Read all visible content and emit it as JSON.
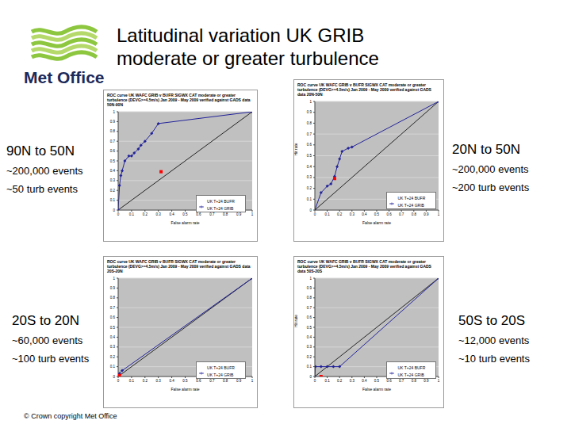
{
  "slide": {
    "title": [
      "Latitudinal variation UK GRIB",
      "moderate or greater turbulence"
    ],
    "logo": "Met Office",
    "footer": "© Crown copyright   Met Office"
  },
  "chart_data": [
    {
      "type": "line",
      "title": "ROC curve UK WAFC GRIB v BUFR SIGWX CAT moderate or greater turbulence (DEVG>=4.5m/s) Jan 2009 - May 2009 verified against GADS data 50N-90N",
      "annotations": [
        "90N to 50N",
        "~200,000 events",
        "~50 turb events"
      ],
      "x_label": "False alarm rate",
      "xlim": [
        0,
        1
      ],
      "xticks": [
        0,
        0.1,
        0.2,
        0.3,
        0.4,
        0.5,
        0.6,
        0.7,
        0.8,
        0.9,
        1
      ],
      "ylim": [
        0,
        1
      ],
      "yticks": [
        0,
        0.1,
        0.2,
        0.3,
        0.4,
        0.5,
        0.6,
        0.7,
        0.8,
        0.9,
        1
      ],
      "grid": true,
      "reference_line": {
        "x": [
          0,
          1
        ],
        "y": [
          0,
          1
        ]
      },
      "series": [
        {
          "name": "UK T+24 GRIB",
          "color": "#22229a",
          "marker": "diamond",
          "line_style": "solid",
          "x": [
            0,
            0.01,
            0.02,
            0.03,
            0.05,
            0.08,
            0.1,
            0.12,
            0.15,
            0.17,
            0.2,
            0.25,
            0.3,
            1
          ],
          "values": [
            0,
            0.25,
            0.35,
            0.4,
            0.5,
            0.55,
            0.55,
            0.58,
            0.62,
            0.66,
            0.7,
            0.78,
            0.88,
            1
          ]
        },
        {
          "name": "UK T+24 BUFR",
          "color": "#ff0000",
          "marker": "square",
          "line_style": "none",
          "x": [
            0.32
          ],
          "values": [
            0.39
          ]
        }
      ]
    },
    {
      "type": "line",
      "title": "ROC curve UK WAFC GRIB v BUFR SIGWX CAT moderate or greater turbulence (DEVG>=4.5m/s) Jan 2009 - May 2009 verified against GADS data 20N-50N",
      "annotations": [
        "20N to 50N",
        "~200,000 events",
        "~200 turb events"
      ],
      "x_label": "False alarm rate",
      "y_label": "Hit rate",
      "xlim": [
        0,
        1
      ],
      "xticks": [
        0,
        0.1,
        0.2,
        0.3,
        0.4,
        0.5,
        0.6,
        0.7,
        0.8,
        0.9,
        1
      ],
      "ylim": [
        0,
        1
      ],
      "yticks": [
        0,
        0.1,
        0.2,
        0.3,
        0.4,
        0.5,
        0.6,
        0.7,
        0.8,
        0.9,
        1
      ],
      "grid": true,
      "reference_line": {
        "x": [
          0,
          1
        ],
        "y": [
          0,
          1
        ]
      },
      "series": [
        {
          "name": "UK T+24 GRIB",
          "color": "#22229a",
          "marker": "diamond",
          "line_style": "solid",
          "x": [
            0,
            0.05,
            0.1,
            0.13,
            0.16,
            0.18,
            0.2,
            0.22,
            0.27,
            0.3,
            1
          ],
          "values": [
            0,
            0.16,
            0.22,
            0.24,
            0.31,
            0.4,
            0.47,
            0.54,
            0.57,
            0.58,
            1
          ]
        },
        {
          "name": "UK T+24 BUFR",
          "color": "#ff0000",
          "marker": "square",
          "line_style": "none",
          "x": [
            0.16
          ],
          "values": [
            0.29
          ]
        }
      ]
    },
    {
      "type": "line",
      "title": "ROC curve UK WAFC GRIB v BUFR SIGWX CAT moderate or greater turbulence (DEVG>=4.5m/s) Jan 2009 - May 2009 verified against GADS data 20S-20N",
      "annotations": [
        "20S to 20N",
        "~60,000 events",
        "~100 turb events"
      ],
      "x_label": "False alarm rate",
      "xlim": [
        0,
        1
      ],
      "xticks": [
        0,
        0.1,
        0.2,
        0.3,
        0.4,
        0.5,
        0.6,
        0.7,
        0.8,
        0.9,
        1
      ],
      "ylim": [
        0,
        1
      ],
      "yticks": [
        0,
        0.1,
        0.2,
        0.3,
        0.4,
        0.5,
        0.6,
        0.7,
        0.8,
        0.9,
        1
      ],
      "grid": true,
      "reference_line": {
        "x": [
          0,
          1
        ],
        "y": [
          0,
          1
        ]
      },
      "series": [
        {
          "name": "UK T+24 GRIB",
          "color": "#22229a",
          "marker": "diamond",
          "line_style": "solid",
          "x": [
            0,
            0.01,
            0.03,
            1
          ],
          "values": [
            0,
            0.03,
            0.06,
            1
          ]
        },
        {
          "name": "UK T+24 BUFR",
          "color": "#ff0000",
          "marker": "square",
          "line_style": "none",
          "x": [
            0.01
          ],
          "values": [
            0.01
          ]
        }
      ]
    },
    {
      "type": "line",
      "title": "ROC curve UK WAFC GRIB v BUFR SIGWX CAT moderate or greater turbulence (DEVG>=4.5m/s) Jan 2009 - May 2009 verified against GADS data 50S-20S",
      "annotations": [
        "50S to 20S",
        "~12,000 events",
        "~10 turb events"
      ],
      "x_label": "False alarm rate",
      "y_label": "Hit rate",
      "xlim": [
        0,
        1
      ],
      "xticks": [
        0,
        0.1,
        0.2,
        0.3,
        0.4,
        0.5,
        0.6,
        0.7,
        0.8,
        0.9,
        1
      ],
      "ylim": [
        0,
        1
      ],
      "yticks": [
        0,
        0.1,
        0.2,
        0.3,
        0.4,
        0.5,
        0.6,
        0.7,
        0.8,
        0.9,
        1
      ],
      "grid": true,
      "reference_line": {
        "x": [
          0,
          1
        ],
        "y": [
          0,
          1
        ]
      },
      "series": [
        {
          "name": "UK T+24 GRIB",
          "color": "#22229a",
          "marker": "diamond",
          "line_style": "solid",
          "x": [
            0,
            0.005,
            0.05,
            0.1,
            0.15,
            0.2,
            1
          ],
          "values": [
            0,
            0.1,
            0.1,
            0.1,
            0.1,
            0.1,
            1
          ]
        },
        {
          "name": "UK T+24 BUFR",
          "color": "#ff0000",
          "marker": "square",
          "line_style": "none",
          "x": [
            0.05
          ],
          "values": [
            0
          ]
        }
      ]
    }
  ]
}
